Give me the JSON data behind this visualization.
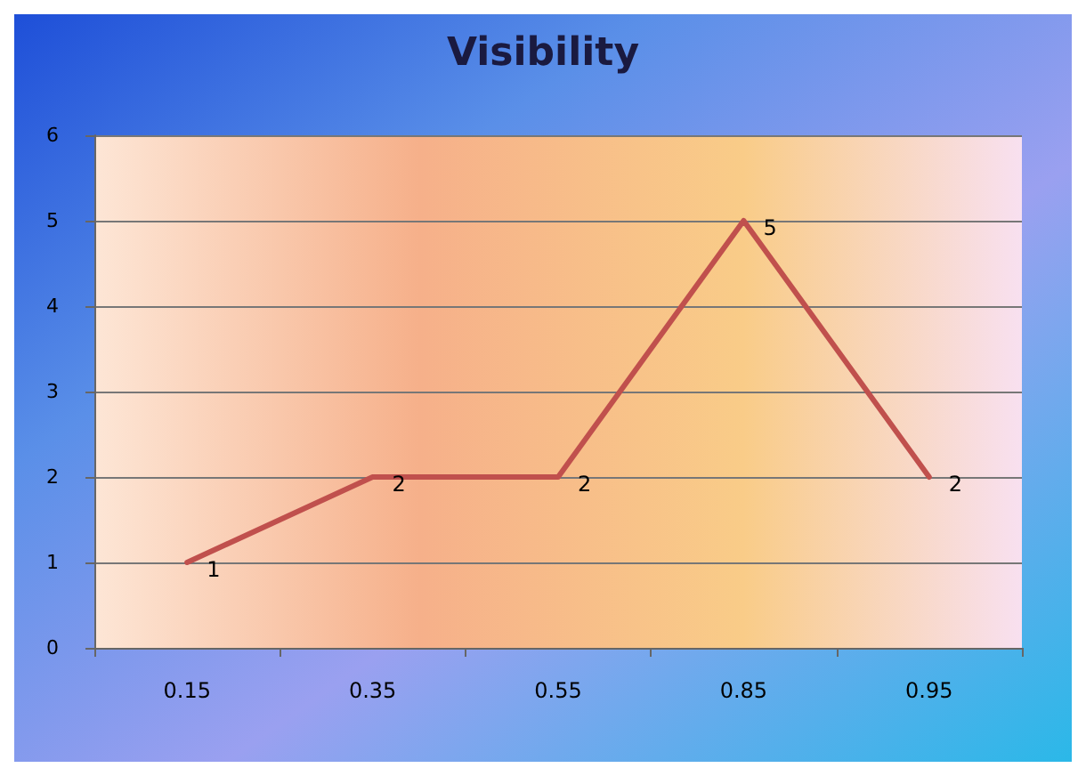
{
  "chart_data": {
    "type": "line",
    "title": "Visibility",
    "categories": [
      "0.15",
      "0.35",
      "0.55",
      "0.85",
      "0.95"
    ],
    "series": [
      {
        "color": "#c0504d",
        "values": [
          1,
          2,
          2,
          5,
          2
        ]
      }
    ],
    "ylim": [
      0,
      6
    ],
    "yticks": [
      0,
      1,
      2,
      3,
      4,
      5,
      6
    ],
    "grid": "y",
    "data_labels": true,
    "marker": "none",
    "line_style": "solid"
  }
}
